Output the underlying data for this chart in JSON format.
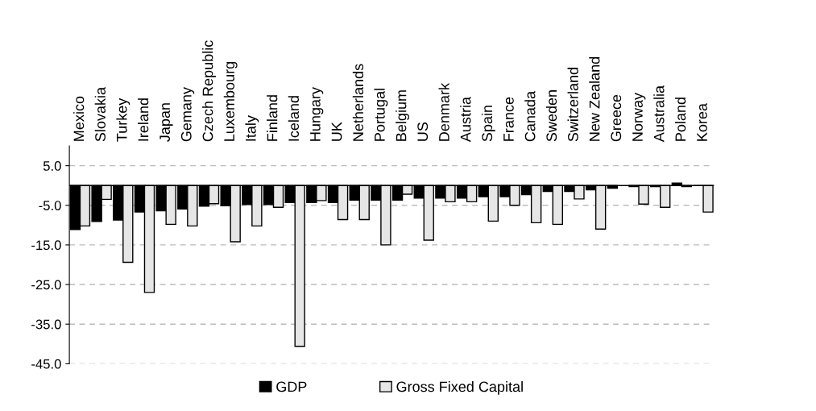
{
  "chart_data": {
    "type": "bar",
    "categories": [
      "Mexico",
      "Slovakia",
      "Turkey",
      "Ireland",
      "Japan",
      "Gemany",
      "Czech Republic",
      "Luxembourg",
      "Italy",
      "Finland",
      "Iceland",
      "Hungary",
      "UK",
      "Netherlands",
      "Portugal",
      "Belgium",
      "US",
      "Denmark",
      "Austria",
      "Spain",
      "France",
      "Canada",
      "Sweden",
      "Switzerland",
      "New Zealand",
      "Greece",
      "Norway",
      "Australia",
      "Poland",
      "Korea"
    ],
    "series": [
      {
        "name": "GDP",
        "color": "#000000",
        "values": [
          -11.1,
          -9.1,
          -8.7,
          -6.7,
          -6.4,
          -5.9,
          -5.2,
          -5.1,
          -4.8,
          -4.8,
          -4.3,
          -4.3,
          -4.3,
          -3.7,
          -3.7,
          -3.7,
          -3.2,
          -3.2,
          -3.2,
          -2.8,
          -2.8,
          -2.3,
          -1.5,
          -1.5,
          -1.1,
          -0.7,
          -0.3,
          -0.3,
          0.6,
          0.0
        ]
      },
      {
        "name": "Gross Fixed Capital",
        "color": "#e6e6e6",
        "values": [
          -10.2,
          -3.5,
          -19.4,
          -27.0,
          -9.8,
          -10.2,
          -4.6,
          -14.2,
          -10.2,
          -5.5,
          -40.6,
          -3.8,
          -8.6,
          -8.6,
          -15.0,
          -2.2,
          -13.8,
          -4.1,
          -4.1,
          -9.0,
          -5.0,
          -9.4,
          -9.8,
          -3.4,
          -11.0,
          null,
          -4.7,
          -5.5,
          -0.3,
          -6.7
        ]
      }
    ],
    "ylim": [
      -45,
      10
    ],
    "yticks": [
      {
        "value": 5,
        "label": "5.0"
      },
      {
        "value": -5,
        "label": "-5.0"
      },
      {
        "value": -15,
        "label": "-15.0"
      },
      {
        "value": -25,
        "label": "-25.0"
      },
      {
        "value": -35,
        "label": "-35.0"
      },
      {
        "value": -45,
        "label": "-45.0"
      }
    ],
    "grid": "y",
    "legend": "bottom"
  }
}
